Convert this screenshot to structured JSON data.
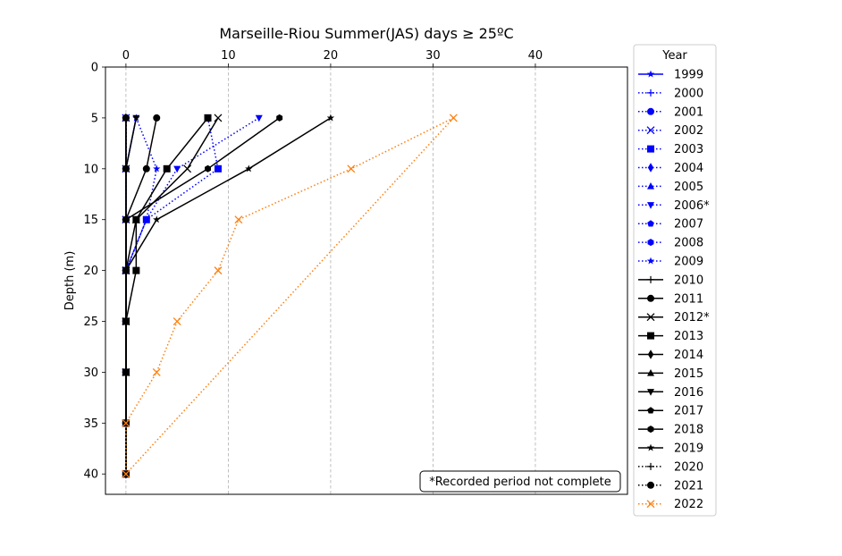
{
  "chart_data": {
    "type": "line",
    "title": "Marseille-Riou Summer(JAS) days ≥ 25ºC",
    "xlabel": "",
    "ylabel": "Depth (m)",
    "xlim": [
      -2,
      49
    ],
    "ylim": [
      42,
      0
    ],
    "xticks": [
      0,
      10,
      20,
      30,
      40
    ],
    "yticks": [
      0,
      5,
      10,
      15,
      20,
      25,
      30,
      35,
      40
    ],
    "x_axis_position": "top",
    "y_inverted": true,
    "grid": "vertical dashed",
    "legend_title": "Year",
    "legend_position": "right, outside",
    "annotation": "*Recorded period not complete",
    "depths": [
      5,
      10,
      15,
      20,
      25,
      30,
      35,
      40
    ],
    "colors": {
      "blue": "#0000ff",
      "black": "#000000",
      "orange": "#ff7f0e",
      "grid": "#b0b0b0"
    },
    "series": [
      {
        "name": "1999",
        "color": "#0000ff",
        "style": "solid",
        "marker": "star",
        "values": [
          1,
          0,
          0,
          0,
          0,
          0,
          0,
          0
        ]
      },
      {
        "name": "2000",
        "color": "#0000ff",
        "style": "dotted",
        "marker": "plus",
        "values": [
          0,
          0,
          0,
          0,
          0,
          0,
          0,
          0
        ]
      },
      {
        "name": "2001",
        "color": "#0000ff",
        "style": "dotted",
        "marker": "circle",
        "values": [
          0,
          0,
          0,
          0,
          0,
          0,
          0,
          0
        ]
      },
      {
        "name": "2002",
        "color": "#0000ff",
        "style": "dotted",
        "marker": "x",
        "values": [
          0,
          0,
          0,
          0,
          0,
          0,
          0,
          0
        ]
      },
      {
        "name": "2003",
        "color": "#0000ff",
        "style": "dotted",
        "marker": "square",
        "values": [
          8,
          9,
          2,
          0,
          0,
          0,
          0,
          0
        ]
      },
      {
        "name": "2004",
        "color": "#0000ff",
        "style": "dotted",
        "marker": "diamond",
        "values": [
          0,
          0,
          0,
          0,
          0,
          0,
          0,
          0
        ]
      },
      {
        "name": "2005",
        "color": "#0000ff",
        "style": "dotted",
        "marker": "triangle-up",
        "values": [
          0,
          0,
          0,
          0,
          0,
          0,
          0,
          0
        ]
      },
      {
        "name": "2006*",
        "color": "#0000ff",
        "style": "dotted",
        "marker": "triangle-down",
        "values": [
          13,
          5,
          2,
          0,
          0,
          0,
          0,
          0
        ]
      },
      {
        "name": "2007",
        "color": "#0000ff",
        "style": "dotted",
        "marker": "pentagon",
        "values": [
          0,
          0,
          0,
          0,
          0,
          0,
          0,
          0
        ]
      },
      {
        "name": "2008",
        "color": "#0000ff",
        "style": "dotted",
        "marker": "hexagon",
        "values": [
          0,
          0,
          0,
          0,
          0,
          0,
          0,
          0
        ]
      },
      {
        "name": "2009",
        "color": "#0000ff",
        "style": "dotted",
        "marker": "star",
        "values": [
          1,
          3,
          2,
          0,
          0,
          0,
          0,
          0
        ]
      },
      {
        "name": "2010",
        "color": "#000000",
        "style": "solid",
        "marker": "plus",
        "values": [
          0,
          0,
          0,
          0,
          0,
          0,
          0,
          0
        ]
      },
      {
        "name": "2011",
        "color": "#000000",
        "style": "solid",
        "marker": "circle",
        "values": [
          3,
          2,
          0,
          0,
          0,
          0,
          0,
          0
        ]
      },
      {
        "name": "2012*",
        "color": "#000000",
        "style": "solid",
        "marker": "x",
        "values": [
          9,
          6,
          1,
          0,
          0,
          0,
          0,
          0
        ]
      },
      {
        "name": "2013",
        "color": "#000000",
        "style": "solid",
        "marker": "square",
        "values": [
          8,
          4,
          1,
          1,
          0,
          0,
          0,
          0
        ]
      },
      {
        "name": "2014",
        "color": "#000000",
        "style": "solid",
        "marker": "diamond",
        "values": [
          0,
          0,
          0,
          0,
          0,
          0,
          0,
          0
        ]
      },
      {
        "name": "2015",
        "color": "#000000",
        "style": "solid",
        "marker": "triangle-up",
        "values": [
          0,
          0,
          0,
          0,
          0,
          0,
          0,
          0
        ]
      },
      {
        "name": "2016",
        "color": "#000000",
        "style": "solid",
        "marker": "triangle-down",
        "values": [
          1,
          0,
          0,
          0,
          0,
          0,
          0,
          0
        ]
      },
      {
        "name": "2017",
        "color": "#000000",
        "style": "solid",
        "marker": "pentagon",
        "values": [
          0,
          0,
          0,
          0,
          0,
          0,
          0,
          0
        ]
      },
      {
        "name": "2018",
        "color": "#000000",
        "style": "solid",
        "marker": "hexagon",
        "values": [
          15,
          8,
          0,
          0,
          0,
          0,
          0,
          0
        ]
      },
      {
        "name": "2019",
        "color": "#000000",
        "style": "solid",
        "marker": "star",
        "values": [
          20,
          12,
          3,
          0,
          0,
          0,
          0,
          0
        ]
      },
      {
        "name": "2020",
        "color": "#000000",
        "style": "dotted",
        "marker": "plus",
        "values": [
          0,
          0,
          0,
          0,
          0,
          0,
          0,
          0
        ]
      },
      {
        "name": "2021",
        "color": "#000000",
        "style": "dotted",
        "marker": "circle",
        "values": [
          0,
          0,
          0,
          0,
          0,
          0,
          0,
          0
        ]
      },
      {
        "name": "2022",
        "color": "#ff7f0e",
        "style": "dotted",
        "marker": "x",
        "values": [
          32,
          22,
          11,
          9,
          5,
          3,
          0,
          0
        ]
      },
      {
        "name": "",
        "color": "#ff7f0e",
        "style": "dotted",
        "marker": "none",
        "values": [
          32,
          null,
          null,
          null,
          null,
          null,
          null,
          0
        ]
      }
    ]
  }
}
